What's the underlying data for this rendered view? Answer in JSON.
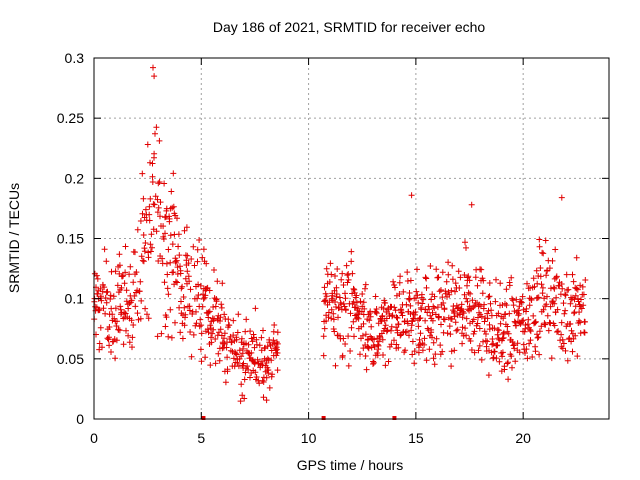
{
  "chart_data": {
    "type": "scatter",
    "title": "Day 186 of 2021, SRMTID for receiver echo",
    "xlabel": "GPS time / hours",
    "ylabel": "SRMTID / TECUs",
    "xlim": [
      0,
      24
    ],
    "ylim": [
      0,
      0.3
    ],
    "x_ticks": [
      0,
      5,
      10,
      15,
      20
    ],
    "x_tick_labels": [
      "0",
      "5",
      "10",
      "15",
      "20"
    ],
    "y_ticks": [
      0,
      0.05,
      0.1,
      0.15,
      0.2,
      0.25,
      0.3
    ],
    "y_tick_labels": [
      "0",
      "0.05",
      "0.1",
      "0.15",
      "0.2",
      "0.25",
      "0.3"
    ],
    "grid": true,
    "marker": "+",
    "color": "#e00000",
    "sampling_interval_hours": 0.025,
    "data_gap_hours": [
      8.6,
      10.7
    ],
    "zero_markers_x": [
      5.1,
      10.7,
      14.0
    ],
    "envelope": {
      "x": [
        0,
        1,
        2,
        2.5,
        2.8,
        3.2,
        4,
        5,
        6,
        7,
        8,
        8.5,
        10.7,
        12,
        13,
        14,
        15,
        16,
        17,
        18,
        19,
        20,
        21,
        22,
        23
      ],
      "center": [
        0.09,
        0.09,
        0.11,
        0.15,
        0.18,
        0.16,
        0.12,
        0.09,
        0.07,
        0.05,
        0.05,
        0.06,
        0.09,
        0.095,
        0.07,
        0.085,
        0.085,
        0.08,
        0.09,
        0.09,
        0.07,
        0.08,
        0.105,
        0.09,
        0.09
      ],
      "spread": [
        0.025,
        0.03,
        0.04,
        0.06,
        0.07,
        0.05,
        0.04,
        0.03,
        0.025,
        0.02,
        0.02,
        0.015,
        0.025,
        0.03,
        0.02,
        0.025,
        0.03,
        0.03,
        0.03,
        0.03,
        0.025,
        0.025,
        0.03,
        0.03,
        0.025
      ]
    },
    "notable_points": [
      {
        "x": 2.75,
        "y": 0.292
      },
      {
        "x": 2.8,
        "y": 0.285
      },
      {
        "x": 14.8,
        "y": 0.186
      },
      {
        "x": 17.6,
        "y": 0.178
      },
      {
        "x": 21.8,
        "y": 0.184
      },
      {
        "x": 7.0,
        "y": 0.017
      },
      {
        "x": 7.9,
        "y": 0.018
      },
      {
        "x": 19.3,
        "y": 0.033
      }
    ]
  }
}
